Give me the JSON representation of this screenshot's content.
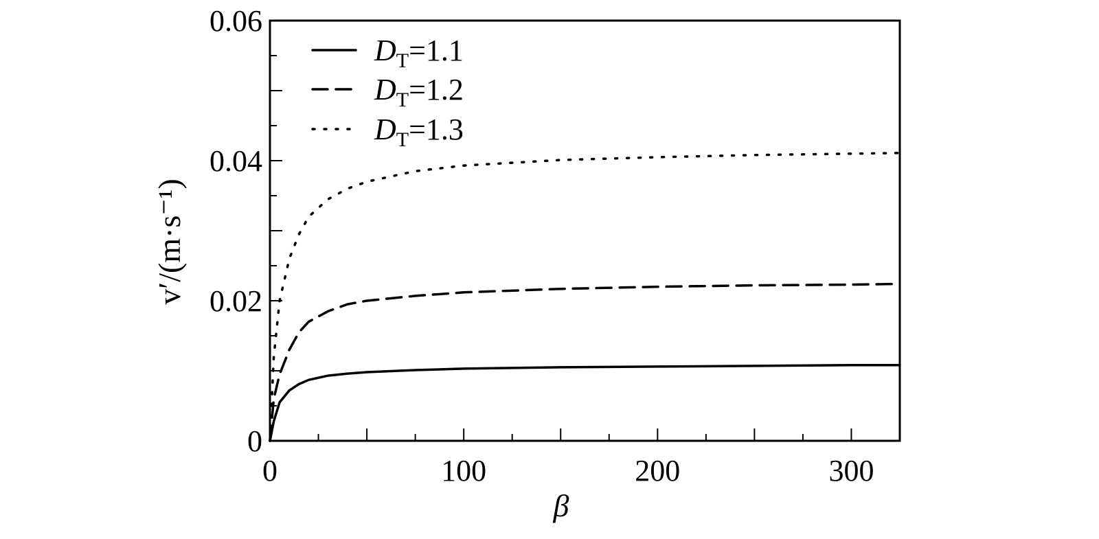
{
  "chart_data": {
    "type": "line",
    "xlabel": "β",
    "ylabel": "v′/(m·s⁻¹)",
    "xlim": [
      0,
      325
    ],
    "ylim": [
      0,
      0.06
    ],
    "x_ticks": [
      0,
      100,
      200,
      300
    ],
    "x_tick_labels": [
      "0",
      "100",
      "200",
      "300"
    ],
    "y_ticks": [
      0,
      0.02,
      0.04,
      0.06
    ],
    "y_tick_labels": [
      "0",
      "0.02",
      "0.04",
      "0.06"
    ],
    "grid": false,
    "legend_position": "top-left",
    "series": [
      {
        "name": "D_T=1.1",
        "legend": {
          "var": "D",
          "sub": "T",
          "value": "=1.1"
        },
        "style": "solid",
        "x": [
          0,
          2,
          5,
          10,
          15,
          20,
          30,
          40,
          50,
          75,
          100,
          150,
          200,
          250,
          300,
          325
        ],
        "y": [
          0,
          0.0028,
          0.0055,
          0.0072,
          0.0081,
          0.0087,
          0.0093,
          0.0096,
          0.0098,
          0.0101,
          0.0103,
          0.0105,
          0.0106,
          0.0107,
          0.0108,
          0.0108
        ]
      },
      {
        "name": "D_T=1.2",
        "legend": {
          "var": "D",
          "sub": "T",
          "value": "=1.2"
        },
        "style": "dashed",
        "x": [
          0,
          2,
          5,
          10,
          15,
          20,
          30,
          40,
          50,
          75,
          100,
          150,
          200,
          250,
          300,
          325
        ],
        "y": [
          0,
          0.006,
          0.0095,
          0.013,
          0.0155,
          0.017,
          0.0185,
          0.0195,
          0.02,
          0.0207,
          0.0212,
          0.0217,
          0.022,
          0.0222,
          0.0223,
          0.0224
        ]
      },
      {
        "name": "D_T=1.3",
        "legend": {
          "var": "D",
          "sub": "T",
          "value": "=1.3"
        },
        "style": "dotted",
        "x": [
          0,
          2,
          5,
          10,
          15,
          20,
          30,
          40,
          50,
          75,
          100,
          150,
          200,
          250,
          300,
          325
        ],
        "y": [
          0,
          0.012,
          0.02,
          0.026,
          0.0295,
          0.032,
          0.0345,
          0.036,
          0.037,
          0.0385,
          0.0393,
          0.0401,
          0.0405,
          0.0408,
          0.041,
          0.0411
        ]
      }
    ]
  }
}
